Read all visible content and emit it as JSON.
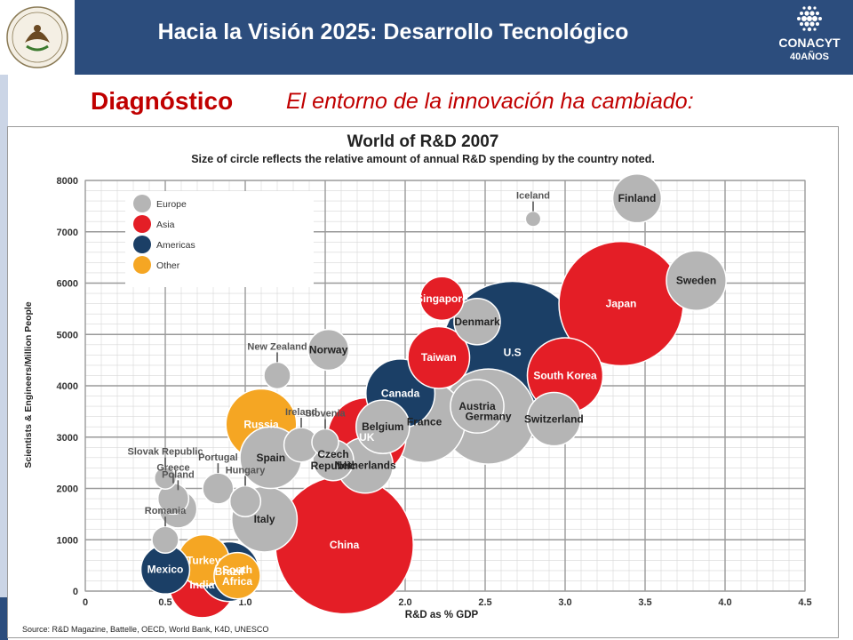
{
  "header": {
    "title": "Hacia la Visión 2025: Desarrollo Tecnológico",
    "logo_text": "CONACYT",
    "anniversary_text": "40AÑOS"
  },
  "section": {
    "title": "Diagnóstico",
    "subtitle": "El entorno de la innovación ha cambiado:"
  },
  "colors": {
    "header_bg": "#2c4d7d",
    "accent_red": "#c00000",
    "Europe": "#b5b5b5",
    "Asia": "#e41e26",
    "Americas": "#1b3f66",
    "Other": "#f5a623"
  },
  "chart_data": {
    "type": "scatter",
    "title": "World of R&D 2007",
    "subtitle": "Size of circle reflects the relative amount of annual R&D spending by the country noted.",
    "xlabel": "R&D as % GDP",
    "ylabel": "Scientists & Engineers/Million People",
    "source": "Source: R&D Magazine, Battelle, OECD, World Bank, K4D, UNESCO",
    "xlim": [
      0,
      4.5
    ],
    "ylim": [
      0,
      8000
    ],
    "x_ticks": [
      "0",
      "0.5",
      "1.0",
      "1.5",
      "2.0",
      "2.5",
      "3.0",
      "3.5",
      "4.0",
      "4.5"
    ],
    "y_ticks": [
      "0",
      "1000",
      "2000",
      "3000",
      "4000",
      "5000",
      "6000",
      "7000",
      "8000"
    ],
    "grid": true,
    "legend_position": "top-left",
    "legend": [
      {
        "name": "Europe"
      },
      {
        "name": "Asia"
      },
      {
        "name": "Americas"
      },
      {
        "name": "Other"
      }
    ],
    "series": [
      {
        "name": "China",
        "region": "Asia",
        "x": 1.62,
        "y": 900,
        "size": 80
      },
      {
        "name": "U.S",
        "region": "Americas",
        "x": 2.67,
        "y": 4650,
        "size": 85
      },
      {
        "name": "Japan",
        "region": "Asia",
        "x": 3.35,
        "y": 5600,
        "size": 65
      },
      {
        "name": "Germany",
        "region": "Europe",
        "x": 2.52,
        "y": 3400,
        "size": 38
      },
      {
        "name": "France",
        "region": "Europe",
        "x": 2.12,
        "y": 3300,
        "size": 28
      },
      {
        "name": "UK",
        "region": "Asia",
        "x": 1.76,
        "y": 3000,
        "size": 26,
        "label": "UK"
      },
      {
        "name": "South Korea",
        "region": "Asia",
        "x": 3.0,
        "y": 4200,
        "size": 24,
        "label": "South Korea"
      },
      {
        "name": "Canada",
        "region": "Americas",
        "x": 1.97,
        "y": 3850,
        "size": 20
      },
      {
        "name": "Russia",
        "region": "Other",
        "x": 1.1,
        "y": 3250,
        "size": 21
      },
      {
        "name": "Italy",
        "region": "Europe",
        "x": 1.12,
        "y": 1400,
        "size": 18
      },
      {
        "name": "Spain",
        "region": "Europe",
        "x": 1.16,
        "y": 2600,
        "size": 16
      },
      {
        "name": "Sweden",
        "region": "Europe",
        "x": 3.82,
        "y": 6050,
        "size": 15
      },
      {
        "name": "Finland",
        "region": "Europe",
        "x": 3.45,
        "y": 7650,
        "size": 10
      },
      {
        "name": "Taiwan",
        "region": "Asia",
        "x": 2.21,
        "y": 4550,
        "size": 16
      },
      {
        "name": "Singapore",
        "region": "Asia",
        "x": 2.23,
        "y": 5700,
        "size": 8
      },
      {
        "name": "Denmark",
        "region": "Europe",
        "x": 2.45,
        "y": 5250,
        "size": 9
      },
      {
        "name": "Switzerland",
        "region": "Europe",
        "x": 2.93,
        "y": 3350,
        "size": 12
      },
      {
        "name": "Austria",
        "region": "Europe",
        "x": 2.45,
        "y": 3600,
        "size": 12
      },
      {
        "name": "Belgium",
        "region": "Europe",
        "x": 1.86,
        "y": 3200,
        "size": 12
      },
      {
        "name": "Netherlands",
        "region": "Europe",
        "x": 1.75,
        "y": 2450,
        "size": 13
      },
      {
        "name": "India",
        "region": "Asia",
        "x": 0.73,
        "y": 120,
        "size": 18
      },
      {
        "name": "Brazil",
        "region": "Americas",
        "x": 0.9,
        "y": 380,
        "size": 15
      },
      {
        "name": "Mexico",
        "region": "Americas",
        "x": 0.5,
        "y": 420,
        "size": 10
      },
      {
        "name": "Turkey",
        "region": "Other",
        "x": 0.74,
        "y": 600,
        "size": 11
      },
      {
        "name": "South Africa",
        "region": "Other",
        "x": 0.95,
        "y": 300,
        "size": 9
      },
      {
        "name": "Norway",
        "region": "Europe",
        "x": 1.52,
        "y": 4700,
        "size": 7
      },
      {
        "name": "New Zealand",
        "region": "Europe",
        "x": 1.2,
        "y": 4200,
        "size": 3
      },
      {
        "name": "Iceland",
        "region": "Europe",
        "x": 2.8,
        "y": 7250,
        "size": 1
      },
      {
        "name": "Ireland",
        "region": "Europe",
        "x": 1.35,
        "y": 2850,
        "size": 5
      },
      {
        "name": "Slovenia",
        "region": "Europe",
        "x": 1.5,
        "y": 2900,
        "size": 3
      },
      {
        "name": "Czech Republic",
        "region": "Europe",
        "x": 1.55,
        "y": 2550,
        "size": 7
      },
      {
        "name": "Portugal",
        "region": "Europe",
        "x": 0.83,
        "y": 2000,
        "size": 4
      },
      {
        "name": "Hungary",
        "region": "Europe",
        "x": 1.0,
        "y": 1750,
        "size": 4
      },
      {
        "name": "Greece",
        "region": "Europe",
        "x": 0.55,
        "y": 1800,
        "size": 4
      },
      {
        "name": "Poland",
        "region": "Europe",
        "x": 0.58,
        "y": 1600,
        "size": 6
      },
      {
        "name": "Romania",
        "region": "Europe",
        "x": 0.5,
        "y": 1000,
        "size": 3
      },
      {
        "name": "Slovak Republic",
        "region": "Europe",
        "x": 0.5,
        "y": 2200,
        "size": 2
      }
    ]
  }
}
